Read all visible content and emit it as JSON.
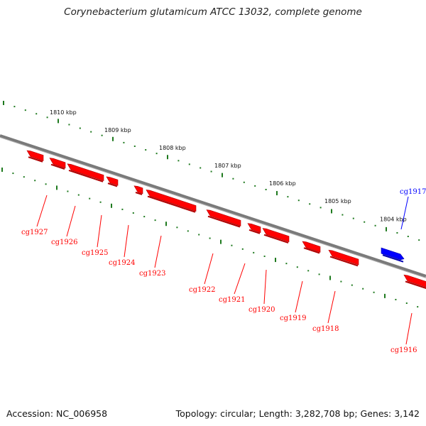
{
  "title": "Corynebacterium glutamicum ATCC 13032, complete genome",
  "footer": {
    "accession": "Accession: NC_006958",
    "topology": "Topology: circular; Length: 3,282,708 bp; Genes: 3,142"
  },
  "colors": {
    "backbone": "#7a7a7a",
    "tick": "#1f7a1f",
    "reverse_gene": "#ff0000",
    "forward_gene": "#0000ff"
  },
  "scale_labels": [
    "1810 kbp",
    "1809 kbp",
    "1808 kbp",
    "1807 kbp",
    "1806 kbp",
    "1805 kbp",
    "1804 kbp"
  ],
  "genes": [
    {
      "id": "cg1927",
      "strand": "reverse"
    },
    {
      "id": "cg1926",
      "strand": "reverse"
    },
    {
      "id": "cg1925",
      "strand": "reverse"
    },
    {
      "id": "cg1924",
      "strand": "reverse"
    },
    {
      "id": "cg1923",
      "strand": "reverse"
    },
    {
      "id": "cg1922",
      "strand": "reverse"
    },
    {
      "id": "cg1921",
      "strand": "reverse"
    },
    {
      "id": "cg1920",
      "strand": "reverse"
    },
    {
      "id": "cg1919",
      "strand": "reverse"
    },
    {
      "id": "cg1918",
      "strand": "reverse"
    },
    {
      "id": "cg1917",
      "strand": "forward"
    },
    {
      "id": "cg1916",
      "strand": "reverse"
    }
  ]
}
